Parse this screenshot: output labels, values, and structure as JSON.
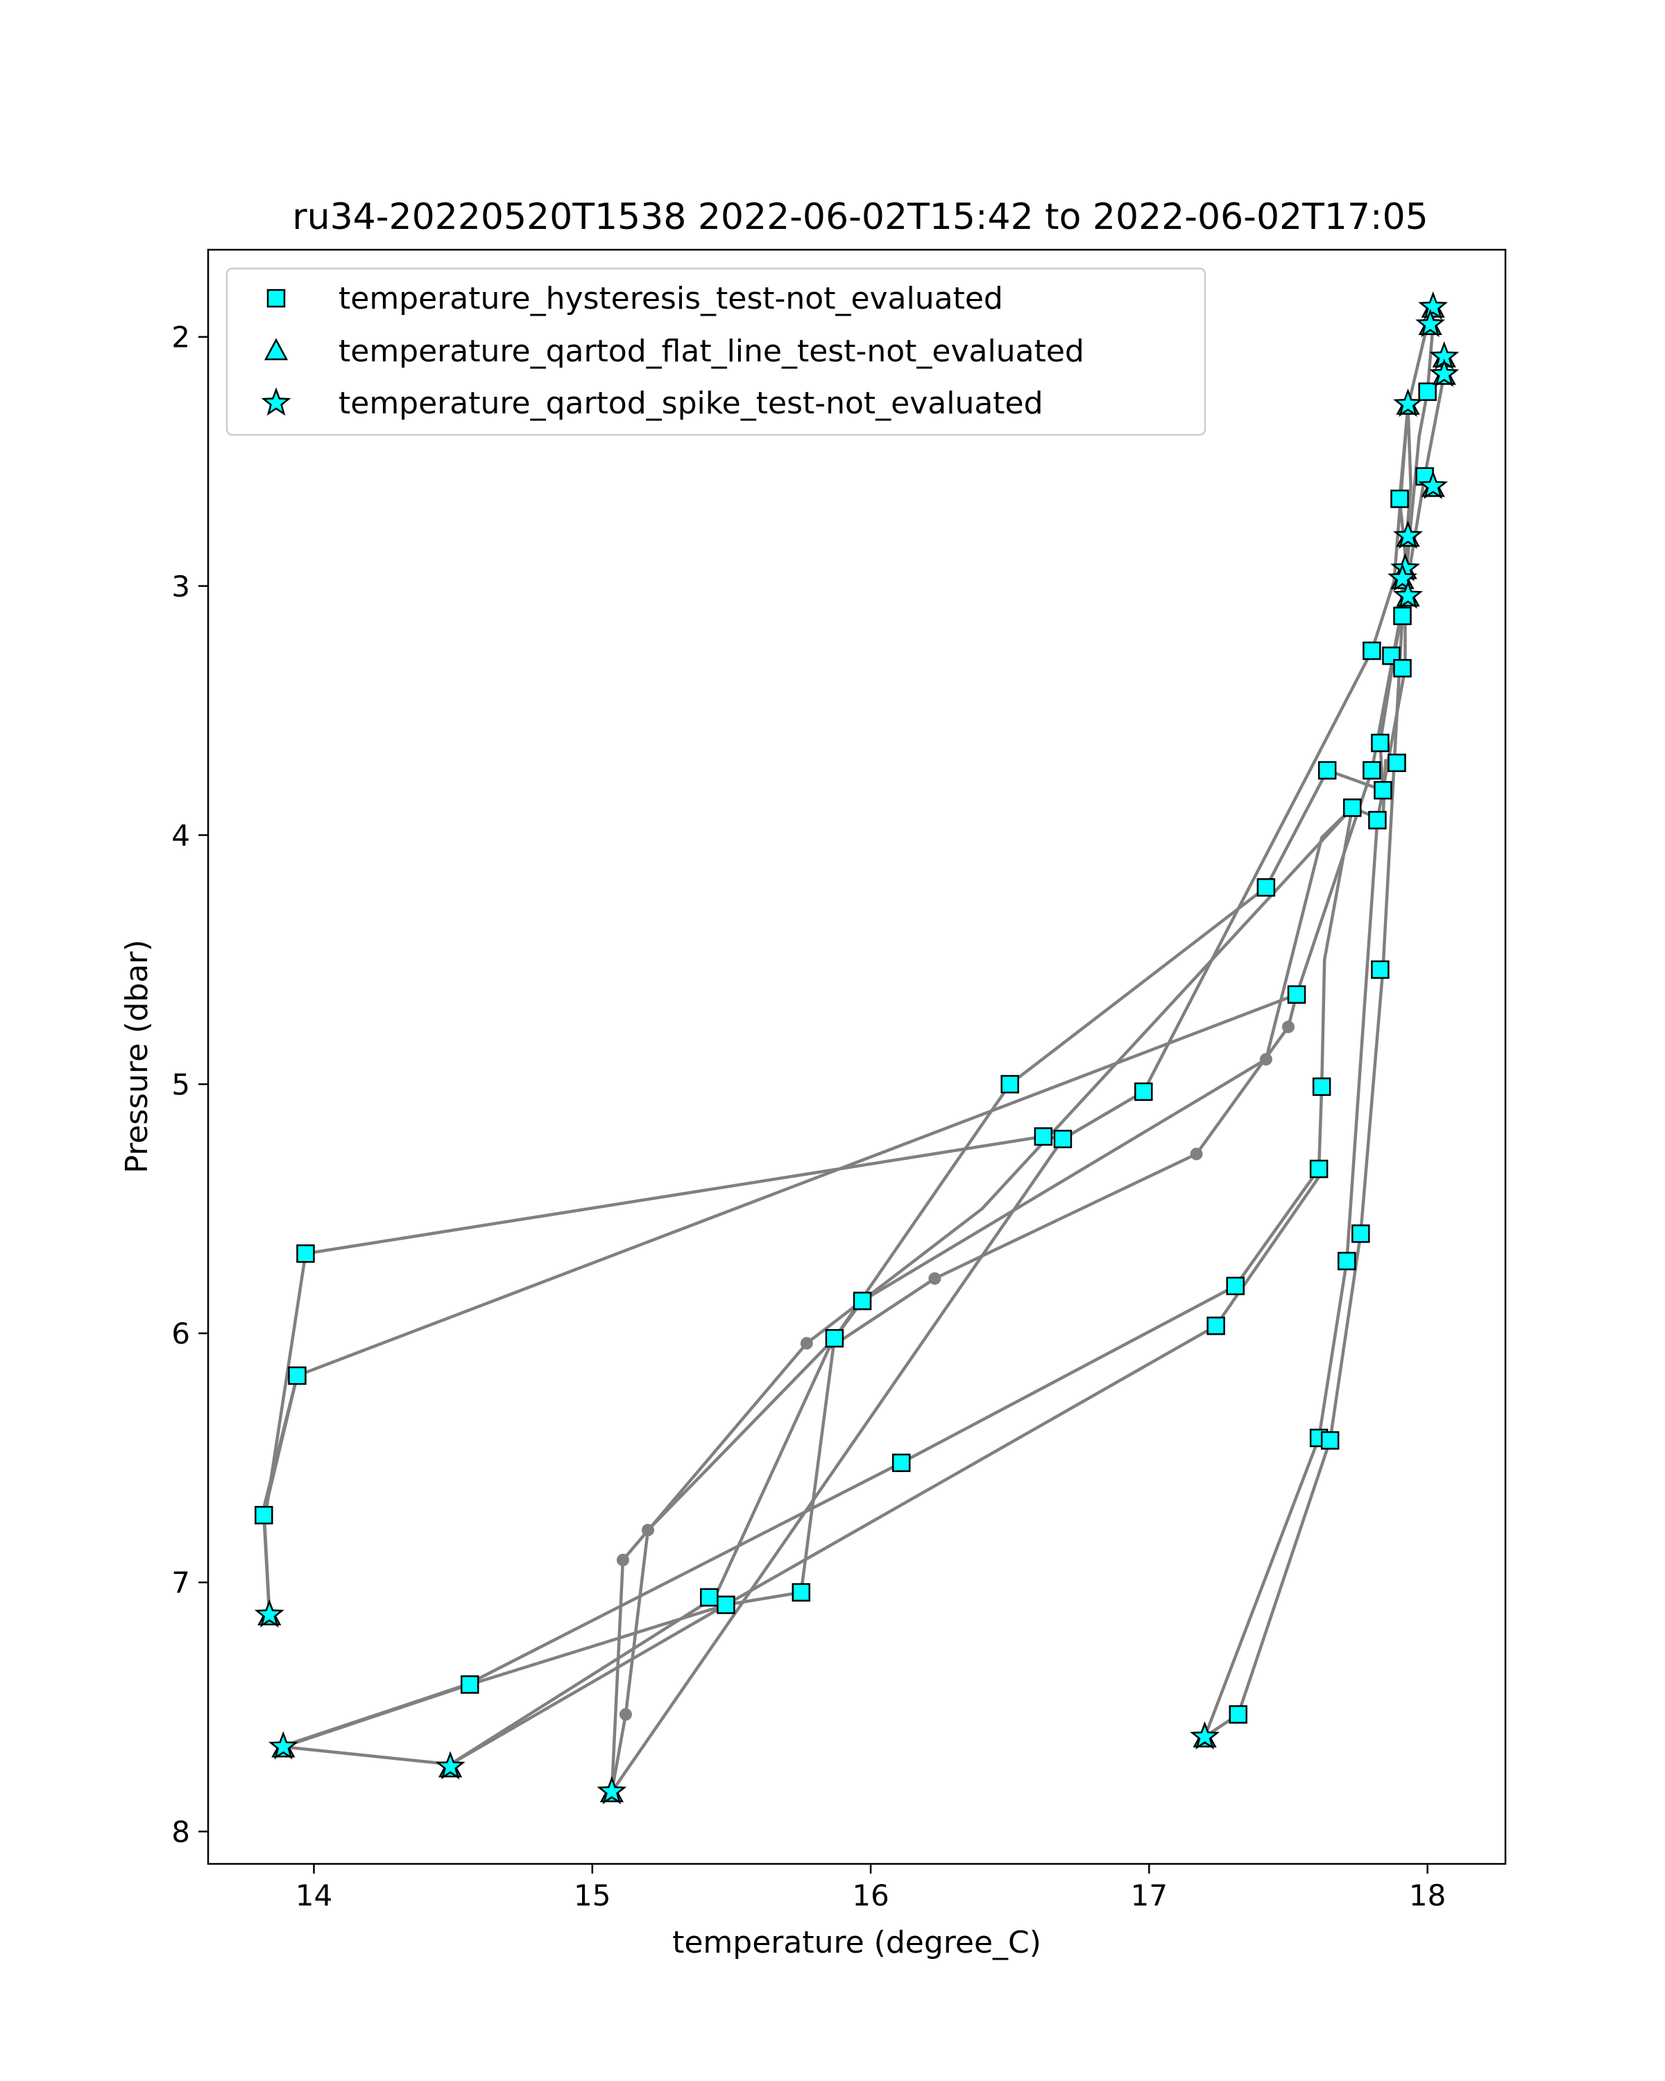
{
  "chart_data": {
    "type": "scatter",
    "title": "ru34-20220520T1538 2022-06-02T15:42 to 2022-06-02T17:05",
    "xlabel": "temperature (degree_C)",
    "ylabel": "Pressure (dbar)",
    "xlim": [
      13.62,
      18.28
    ],
    "ylim": [
      8.13,
      1.65
    ],
    "y_inverted": true,
    "xticks": [
      14,
      15,
      16,
      17,
      18
    ],
    "yticks": [
      2,
      3,
      4,
      5,
      6,
      7,
      8
    ],
    "grid": false,
    "legend_position": "upper-left",
    "colors": {
      "marker_fill": "#00ffff",
      "marker_edge": "#000000",
      "line": "#808080"
    },
    "legend": [
      {
        "label": "temperature_hysteresis_test-not_evaluated",
        "marker": "square"
      },
      {
        "label": "temperature_qartod_flat_line_test-not_evaluated",
        "marker": "triangle"
      },
      {
        "label": "temperature_qartod_spike_test-not_evaluated",
        "marker": "star"
      }
    ],
    "segments": [
      {
        "name": "A",
        "points": [
          [
            17.2,
            7.62
          ],
          [
            17.32,
            7.53
          ],
          [
            17.65,
            6.43
          ],
          [
            17.76,
            5.6
          ],
          [
            17.84,
            4.54
          ],
          [
            17.88,
            3.72
          ],
          [
            17.91,
            3.12
          ],
          [
            17.94,
            2.75
          ],
          [
            17.97,
            2.4
          ],
          [
            18.0,
            2.22
          ],
          [
            18.02,
            1.95
          ],
          [
            18.02,
            1.88
          ]
        ]
      },
      {
        "name": "B",
        "points": [
          [
            18.06,
            2.08
          ],
          [
            18.06,
            2.15
          ],
          [
            17.99,
            2.56
          ],
          [
            17.92,
            3.04
          ],
          [
            17.92,
            3.33
          ],
          [
            17.82,
            3.94
          ],
          [
            17.71,
            5.71
          ],
          [
            17.61,
            6.42
          ],
          [
            17.2,
            7.62
          ]
        ]
      },
      {
        "name": "C",
        "points": [
          [
            18.0,
            1.95
          ],
          [
            17.93,
            2.28
          ],
          [
            17.9,
            2.65
          ],
          [
            17.93,
            2.98
          ],
          [
            17.88,
            3.28
          ],
          [
            17.83,
            3.63
          ],
          [
            17.84,
            3.82
          ],
          [
            17.64,
            3.74
          ],
          [
            17.42,
            4.21
          ],
          [
            16.5,
            5.0
          ],
          [
            15.87,
            6.02
          ],
          [
            15.75,
            7.04
          ],
          [
            15.48,
            7.09
          ],
          [
            14.56,
            7.41
          ],
          [
            13.89,
            7.66
          ],
          [
            14.49,
            7.73
          ],
          [
            15.44,
            7.06
          ],
          [
            15.85,
            6.06
          ],
          [
            16.23,
            5.78
          ],
          [
            17.17,
            5.28
          ],
          [
            17.5,
            4.77
          ],
          [
            17.53,
            4.64
          ],
          [
            17.8,
            3.74
          ],
          [
            17.9,
            3.14
          ],
          [
            17.94,
            2.6
          ],
          [
            17.93,
            2.28
          ]
        ]
      },
      {
        "name": "D",
        "points": [
          [
            17.93,
            2.28
          ],
          [
            17.88,
            2.98
          ],
          [
            17.8,
            3.26
          ],
          [
            16.98,
            5.03
          ],
          [
            16.69,
            5.22
          ],
          [
            15.07,
            7.84
          ],
          [
            15.12,
            7.53
          ],
          [
            15.2,
            6.79
          ],
          [
            15.87,
            6.02
          ],
          [
            15.97,
            5.87
          ],
          [
            17.42,
            4.9
          ],
          [
            17.62,
            4.01
          ],
          [
            17.73,
            3.89
          ],
          [
            17.63,
            4.5
          ],
          [
            17.62,
            5.01
          ],
          [
            17.61,
            5.34
          ],
          [
            17.31,
            5.81
          ],
          [
            16.11,
            6.52
          ],
          [
            14.55,
            7.41
          ],
          [
            13.88,
            7.66
          ]
        ]
      },
      {
        "name": "E",
        "points": [
          [
            15.07,
            7.84
          ],
          [
            15.11,
            6.91
          ],
          [
            15.77,
            6.04
          ],
          [
            16.4,
            5.5
          ],
          [
            17.73,
            3.89
          ],
          [
            17.84,
            3.94
          ],
          [
            17.85,
            3.7
          ]
        ]
      },
      {
        "name": "F",
        "points": [
          [
            17.24,
            5.97
          ],
          [
            15.48,
            7.09
          ],
          [
            14.49,
            7.73
          ]
        ]
      },
      {
        "name": "G",
        "points": [
          [
            13.97,
            5.68
          ],
          [
            16.62,
            5.21
          ],
          [
            16.69,
            5.22
          ]
        ]
      },
      {
        "name": "H",
        "points": [
          [
            17.53,
            4.64
          ],
          [
            13.94,
            6.17
          ],
          [
            13.82,
            6.73
          ],
          [
            13.84,
            7.13
          ]
        ]
      },
      {
        "name": "I",
        "points": [
          [
            13.94,
            6.17
          ],
          [
            13.82,
            6.7
          ],
          [
            13.84,
            7.12
          ]
        ]
      },
      {
        "name": "J",
        "points": [
          [
            13.97,
            5.68
          ],
          [
            13.83,
            6.7
          ]
        ]
      },
      {
        "name": "K",
        "points": [
          [
            17.24,
            5.97
          ],
          [
            17.63,
            5.34
          ]
        ]
      }
    ],
    "square_points": [
      [
        18.0,
        2.22
      ],
      [
        17.99,
        2.56
      ],
      [
        17.9,
        2.65
      ],
      [
        17.91,
        3.12
      ],
      [
        17.8,
        3.26
      ],
      [
        17.87,
        3.28
      ],
      [
        17.91,
        3.33
      ],
      [
        17.83,
        3.63
      ],
      [
        17.64,
        3.74
      ],
      [
        17.8,
        3.74
      ],
      [
        17.84,
        3.82
      ],
      [
        17.89,
        3.71
      ],
      [
        17.73,
        3.89
      ],
      [
        17.82,
        3.94
      ],
      [
        17.42,
        4.21
      ],
      [
        17.83,
        4.54
      ],
      [
        17.53,
        4.64
      ],
      [
        16.5,
        5.0
      ],
      [
        16.98,
        5.03
      ],
      [
        17.62,
        5.01
      ],
      [
        16.62,
        5.21
      ],
      [
        16.69,
        5.22
      ],
      [
        17.61,
        5.34
      ],
      [
        17.76,
        5.6
      ],
      [
        13.97,
        5.68
      ],
      [
        17.71,
        5.71
      ],
      [
        17.31,
        5.81
      ],
      [
        15.97,
        5.87
      ],
      [
        17.24,
        5.97
      ],
      [
        15.87,
        6.02
      ],
      [
        13.94,
        6.17
      ],
      [
        16.11,
        6.52
      ],
      [
        17.61,
        6.42
      ],
      [
        17.65,
        6.43
      ],
      [
        13.82,
        6.73
      ],
      [
        15.75,
        7.04
      ],
      [
        15.42,
        7.06
      ],
      [
        15.48,
        7.09
      ],
      [
        14.56,
        7.41
      ],
      [
        17.32,
        7.53
      ]
    ],
    "star_points": [
      [
        18.02,
        1.88
      ],
      [
        18.01,
        1.95
      ],
      [
        18.06,
        2.08
      ],
      [
        18.06,
        2.15
      ],
      [
        17.93,
        2.27
      ],
      [
        18.02,
        2.6
      ],
      [
        17.93,
        2.8
      ],
      [
        17.92,
        2.93
      ],
      [
        17.91,
        2.97
      ],
      [
        17.93,
        3.04
      ],
      [
        13.84,
        7.13
      ],
      [
        13.89,
        7.66
      ],
      [
        14.49,
        7.74
      ],
      [
        15.07,
        7.84
      ],
      [
        17.2,
        7.62
      ]
    ],
    "dot_points": [
      [
        17.5,
        4.77
      ],
      [
        17.42,
        4.9
      ],
      [
        17.17,
        5.28
      ],
      [
        16.23,
        5.78
      ],
      [
        15.77,
        6.04
      ],
      [
        15.2,
        6.79
      ],
      [
        15.11,
        6.91
      ],
      [
        15.12,
        7.53
      ]
    ]
  }
}
